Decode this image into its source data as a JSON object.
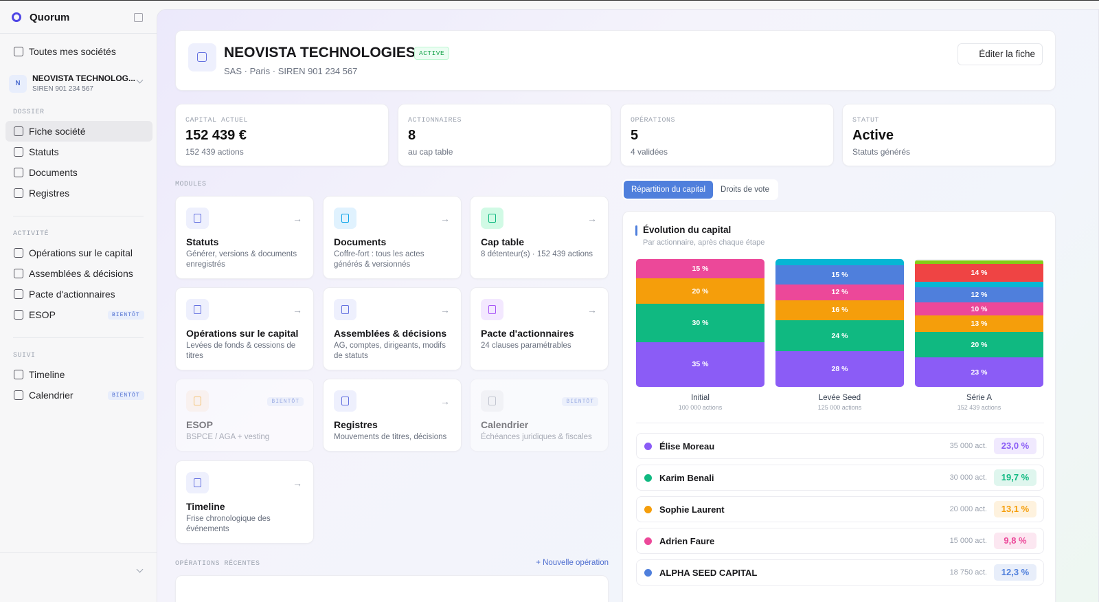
{
  "sidebar": {
    "brand": "Quorum",
    "all_companies": "Toutes mes sociétés",
    "company": {
      "initial": "N",
      "name": "NEOVISTA TECHNOLOG...",
      "siren": "SIREN 901 234 567"
    },
    "sections": [
      {
        "title": "DOSSIER",
        "items": [
          {
            "label": "Fiche société"
          },
          {
            "label": "Statuts"
          },
          {
            "label": "Documents"
          },
          {
            "label": "Registres"
          }
        ]
      },
      {
        "title": "ACTIVITÉ",
        "items": [
          {
            "label": "Opérations sur le capital"
          },
          {
            "label": "Assemblées & décisions"
          },
          {
            "label": "Pacte d'actionnaires"
          },
          {
            "label": "ESOP",
            "badge": "BIENTÔT"
          }
        ]
      },
      {
        "title": "SUIVI",
        "items": [
          {
            "label": "Timeline"
          },
          {
            "label": "Calendrier",
            "badge": "BIENTÔT"
          }
        ]
      }
    ]
  },
  "header": {
    "title": "NEOVISTA TECHNOLOGIES",
    "status": "ACTIVE",
    "subtitle": "SAS · Paris · SIREN 901 234 567",
    "edit_button": "Éditer la fiche"
  },
  "stats": [
    {
      "label": "CAPITAL ACTUEL",
      "value": "152 439 €",
      "sub": "152 439 actions"
    },
    {
      "label": "ACTIONNAIRES",
      "value": "8",
      "sub": "au cap table"
    },
    {
      "label": "OPÉRATIONS",
      "value": "5",
      "sub": "4 validées"
    },
    {
      "label": "STATUT",
      "value": "Active",
      "sub": "Statuts générés"
    }
  ],
  "modules": {
    "title": "MODULES",
    "cards": [
      {
        "title": "Statuts",
        "desc": "Générer, versions & documents enregistrés"
      },
      {
        "title": "Documents",
        "desc": "Coffre-fort : tous les actes générés & versionnés"
      },
      {
        "title": "Cap table",
        "desc": "8 détenteur(s) · 152 439 actions"
      },
      {
        "title": "Opérations sur le capital",
        "desc": "Levées de fonds & cessions de titres"
      },
      {
        "title": "Assemblées & décisions",
        "desc": "AG, comptes, dirigeants, modifs de statuts"
      },
      {
        "title": "Pacte d'actionnaires",
        "desc": "24 clauses paramétrables"
      },
      {
        "title": "ESOP",
        "desc": "BSPCE / AGA + vesting",
        "badge": "BIENTÔT"
      },
      {
        "title": "Registres",
        "desc": "Mouvements de titres, décisions"
      },
      {
        "title": "Calendrier",
        "desc": "Échéances juridiques & fiscales",
        "badge": "BIENTÔT"
      },
      {
        "title": "Timeline",
        "desc": "Frise chronologique des événements"
      }
    ]
  },
  "recent_operations": {
    "title": "OPÉRATIONS RÉCENTES",
    "action": "+ Nouvelle opération"
  },
  "capital_panel": {
    "tabs": [
      "Répartition du capital",
      "Droits de vote"
    ],
    "title": "Évolution du capital",
    "subtitle": "Par actionnaire, après chaque étape",
    "bars": [
      {
        "name": "Initial",
        "sub": "100 000 actions",
        "values": [
          35,
          30,
          20,
          15
        ],
        "value_labels": [
          "35 %",
          "30 %",
          "20 %",
          "15 %"
        ],
        "colors": [
          "#8b5cf6",
          "#10b981",
          "#f59e0b",
          "#ec4899"
        ]
      },
      {
        "name": "Levée Seed",
        "sub": "125 000 actions",
        "values": [
          28,
          24,
          16,
          12,
          15,
          5
        ],
        "value_labels": [
          "28 %",
          "24 %",
          "16 %",
          "12 %",
          "15 %",
          null
        ],
        "colors": [
          "#8b5cf6",
          "#10b981",
          "#f59e0b",
          "#ec4899",
          "#4f7fdc",
          "#06b6d4"
        ]
      },
      {
        "name": "Série A",
        "sub": "152 439 actions",
        "values": [
          23,
          20,
          13,
          10,
          12,
          4,
          14,
          3
        ],
        "value_labels": [
          "23 %",
          "20 %",
          "13 %",
          "10 %",
          "12 %",
          null,
          "14 %",
          null
        ],
        "colors": [
          "#8b5cf6",
          "#10b981",
          "#f59e0b",
          "#ec4899",
          "#4f7fdc",
          "#06b6d4",
          "#ef4444",
          "#84cc16"
        ]
      }
    ],
    "shareholders": [
      {
        "name": "Élise Moreau",
        "shares": "35 000 act.",
        "pct": "23,0 %",
        "color": "#8b5cf6"
      },
      {
        "name": "Karim Benali",
        "shares": "30 000 act.",
        "pct": "19,7 %",
        "color": "#10b981"
      },
      {
        "name": "Sophie Laurent",
        "shares": "20 000 act.",
        "pct": "13,1 %",
        "color": "#f59e0b"
      },
      {
        "name": "Adrien Faure",
        "shares": "15 000 act.",
        "pct": "9,8 %",
        "color": "#ec4899"
      },
      {
        "name": "ALPHA SEED CAPITAL",
        "shares": "18 750 act.",
        "pct": "12,3 %",
        "color": "#4f7fdc"
      }
    ]
  }
}
